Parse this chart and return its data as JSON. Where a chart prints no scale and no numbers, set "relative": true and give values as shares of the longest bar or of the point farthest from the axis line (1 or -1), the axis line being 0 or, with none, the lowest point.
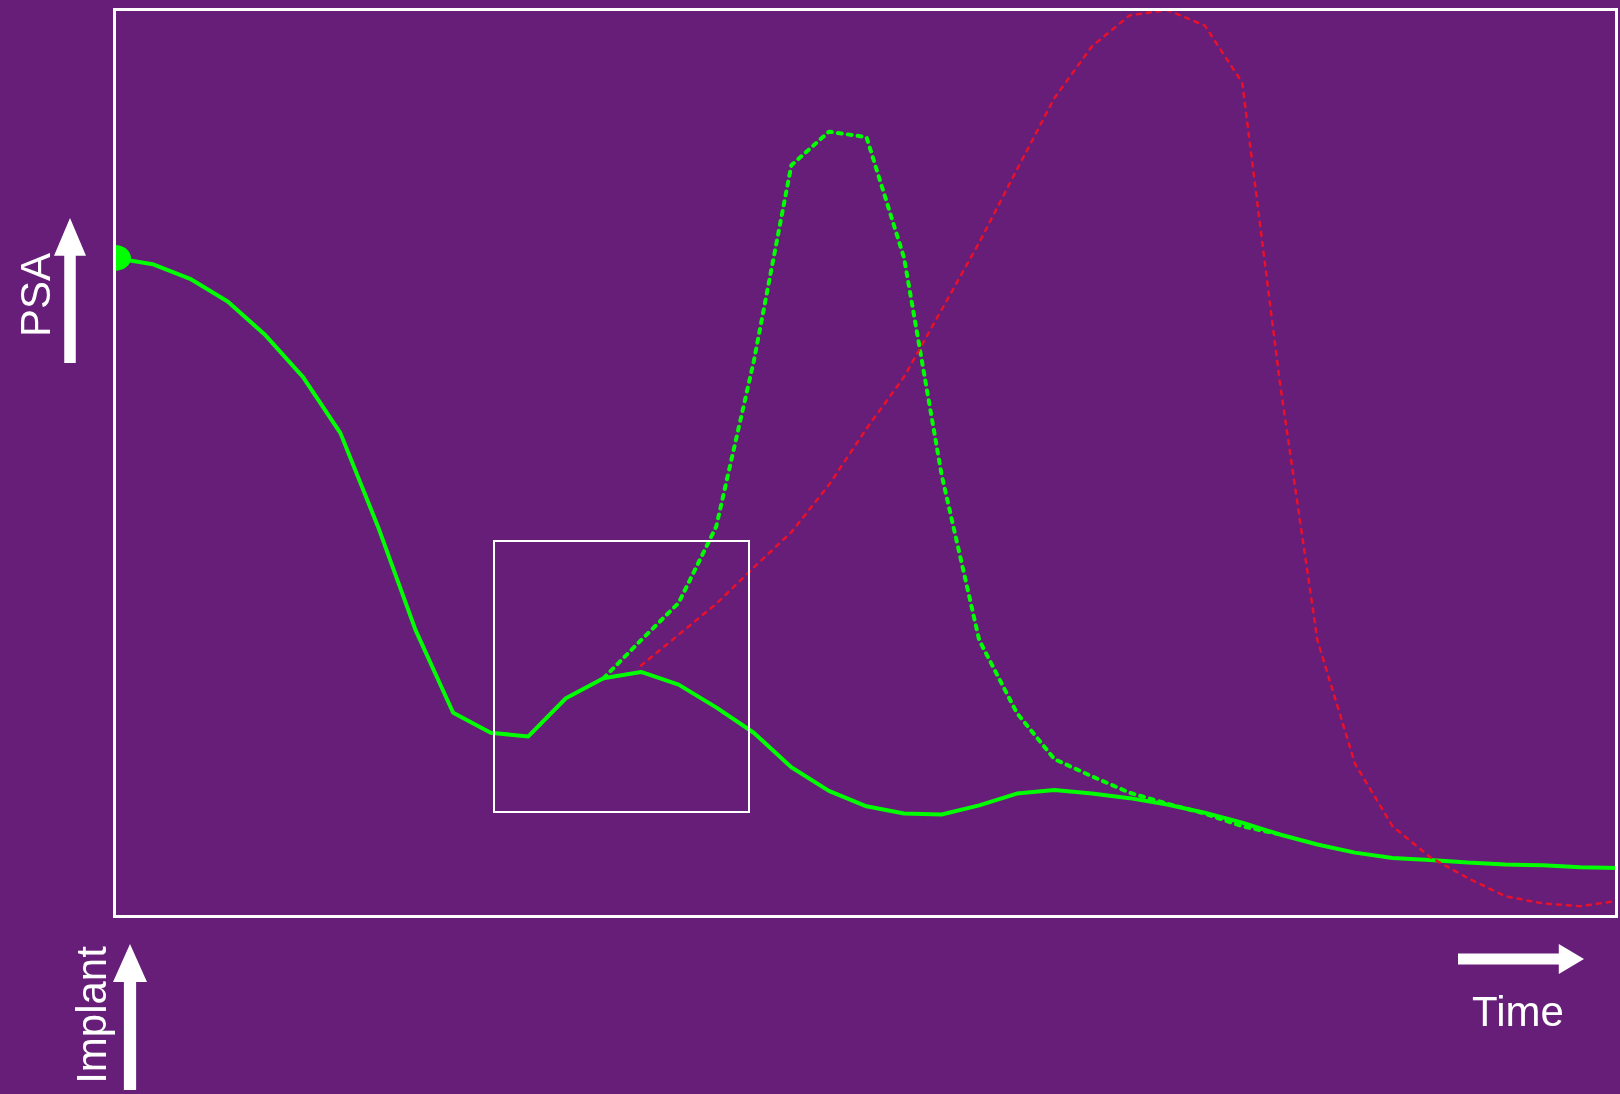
{
  "chart_data": {
    "type": "line",
    "relative": true,
    "xlabel": "Time",
    "ylabel": "PSA",
    "annotations": [
      "Implant"
    ],
    "grid": false,
    "tick_labels": false,
    "categories": [
      null,
      null,
      null,
      null,
      null,
      null,
      null,
      null,
      null,
      null,
      null,
      null,
      null,
      null,
      null,
      null,
      null,
      null,
      null,
      null,
      null,
      null,
      null,
      null,
      null,
      null,
      null,
      null,
      null,
      null,
      null,
      null,
      null,
      null,
      null,
      null,
      null,
      null,
      null,
      null,
      null
    ],
    "series": [
      {
        "color": "#00ff00",
        "line_style": "solid",
        "values": [
          0.727,
          0.72,
          0.704,
          0.679,
          0.642,
          0.596,
          0.534,
          0.431,
          0.317,
          0.226,
          0.204,
          0.2,
          0.242,
          0.264,
          0.271,
          0.257,
          0.232,
          0.204,
          0.166,
          0.14,
          0.123,
          0.115,
          0.114,
          0.124,
          0.137,
          0.141,
          0.137,
          0.132,
          0.125,
          0.116,
          0.105,
          0.092,
          0.081,
          0.072,
          0.066,
          0.064,
          0.061,
          0.059,
          0.058,
          0.056,
          0.055
        ]
      },
      {
        "color": "#00ff00",
        "line_style": "dotted",
        "values": [
          null,
          null,
          null,
          null,
          null,
          null,
          null,
          null,
          null,
          null,
          null,
          null,
          null,
          0.264,
          0.306,
          0.347,
          0.431,
          0.613,
          0.829,
          0.866,
          0.86,
          0.727,
          0.488,
          0.306,
          0.226,
          0.175,
          0.156,
          0.138,
          0.126,
          0.115,
          0.101,
          0.092,
          null,
          null,
          null,
          null,
          null,
          null,
          null,
          null,
          null
        ]
      },
      {
        "color": "#e8102a",
        "line_style": "dotted",
        "values": [
          null,
          null,
          null,
          null,
          null,
          null,
          null,
          null,
          null,
          null,
          null,
          null,
          null,
          null,
          0.278,
          0.312,
          0.346,
          0.386,
          0.425,
          0.477,
          0.539,
          0.596,
          0.67,
          0.744,
          0.824,
          0.903,
          0.96,
          0.994,
          1.0,
          0.983,
          0.92,
          0.59,
          0.306,
          0.17,
          0.101,
          0.067,
          0.044,
          0.024,
          0.016,
          0.013,
          0.019
        ]
      }
    ]
  }
}
